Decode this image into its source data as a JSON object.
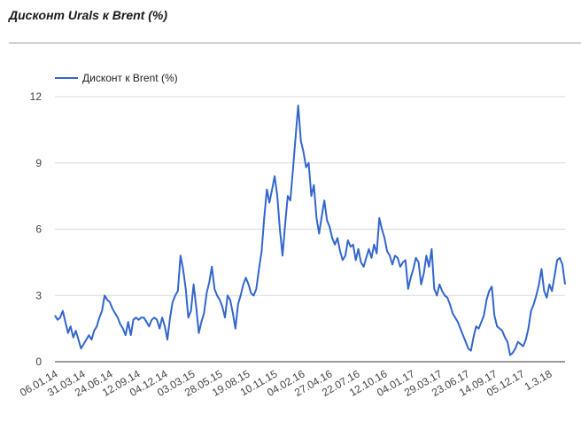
{
  "page": {
    "title": "Дисконт Urals к Brent (%)"
  },
  "colors": {
    "line": "#3366cc",
    "grid": "#d9d9d9",
    "baseline": "#333333",
    "rule": "#9e9e9e"
  },
  "chart_data": {
    "type": "line",
    "title": "",
    "xlabel": "",
    "ylabel": "",
    "legend_position": "top-left",
    "grid": true,
    "ylim": [
      0,
      12
    ],
    "y_ticks": [
      "0",
      "3",
      "6",
      "9",
      "12"
    ],
    "x_ticks": [
      "06.01.14",
      "31.03.14",
      "24.06.14",
      "12.09.14",
      "04.12.14",
      "03.03.15",
      "28.05.15",
      "19.08.15",
      "10.11.15",
      "04.02.16",
      "27.04.16",
      "22.07.16",
      "12.10.16",
      "04.01.17",
      "29.03.17",
      "23.06.17",
      "14.09.17",
      "05.12.17",
      "1.3.18"
    ],
    "series": [
      {
        "name": "Дисконт к Brent (%)",
        "values": [
          2.1,
          1.9,
          2.0,
          2.3,
          1.8,
          1.3,
          1.6,
          1.1,
          1.4,
          1.0,
          0.6,
          0.8,
          1.0,
          1.2,
          1.0,
          1.4,
          1.6,
          2.0,
          2.3,
          3.0,
          2.8,
          2.7,
          2.4,
          2.2,
          2.0,
          1.7,
          1.5,
          1.2,
          1.8,
          1.2,
          1.9,
          2.0,
          1.9,
          2.0,
          2.0,
          1.8,
          1.6,
          1.9,
          2.0,
          1.9,
          1.5,
          2.0,
          1.6,
          1.0,
          2.0,
          2.7,
          3.0,
          3.2,
          4.8,
          4.2,
          3.3,
          2.0,
          2.3,
          3.5,
          2.5,
          1.3,
          1.8,
          2.2,
          3.1,
          3.6,
          4.3,
          3.3,
          3.0,
          2.8,
          2.5,
          2.0,
          3.0,
          2.8,
          2.2,
          1.5,
          2.6,
          3.0,
          3.5,
          3.8,
          3.5,
          3.1,
          3.0,
          3.3,
          4.2,
          5.0,
          6.5,
          7.8,
          7.2,
          7.8,
          8.4,
          7.5,
          6.0,
          4.8,
          6.2,
          7.5,
          7.3,
          8.7,
          10.2,
          11.6,
          10.0,
          9.5,
          8.8,
          9.0,
          7.5,
          8.0,
          6.5,
          5.8,
          6.6,
          7.3,
          6.4,
          6.1,
          5.6,
          5.3,
          5.6,
          5.0,
          4.6,
          4.8,
          5.5,
          5.2,
          5.3,
          4.6,
          5.1,
          4.5,
          4.3,
          4.7,
          5.1,
          4.7,
          5.3,
          4.9,
          6.5,
          6.0,
          5.6,
          5.0,
          4.8,
          4.4,
          4.8,
          4.7,
          4.3,
          4.5,
          4.6,
          3.3,
          3.8,
          4.2,
          4.7,
          4.5,
          3.5,
          4.0,
          4.8,
          4.3,
          5.1,
          3.3,
          3.0,
          3.5,
          3.2,
          3.0,
          2.9,
          2.6,
          2.2,
          2.0,
          1.8,
          1.5,
          1.2,
          0.9,
          0.6,
          0.5,
          1.1,
          1.6,
          1.5,
          1.8,
          2.1,
          2.8,
          3.2,
          3.4,
          2.1,
          1.6,
          1.5,
          1.4,
          1.1,
          0.9,
          0.3,
          0.4,
          0.6,
          0.9,
          0.8,
          0.7,
          1.0,
          1.5,
          2.3,
          2.6,
          3.0,
          3.5,
          4.2,
          3.2,
          2.9,
          3.5,
          3.2,
          3.9,
          4.6,
          4.7,
          4.4,
          3.5
        ]
      }
    ]
  }
}
